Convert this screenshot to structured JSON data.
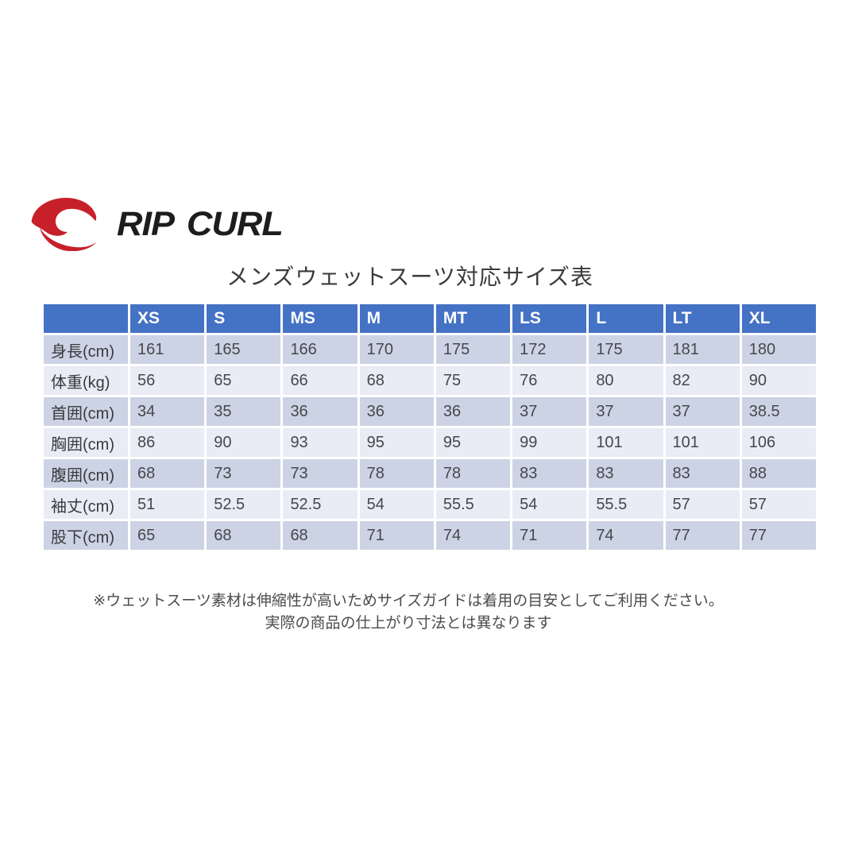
{
  "page": {
    "background": "#ffffff"
  },
  "logo": {
    "brand": "RIP CURL",
    "swoosh_color": "#c7202a",
    "text_color": "#1d1d1f"
  },
  "table_style": {
    "header_bg": "#4472c4",
    "header_text": "#ffffff",
    "row_dark_bg": "#ccd3e4",
    "row_light_bg": "#e9ebf5",
    "cell_text": "#46484d"
  },
  "chart_data": {
    "type": "table",
    "title": "メンズウェットスーツ対応サイズ表",
    "columns": [
      "",
      "XS",
      "S",
      "MS",
      "M",
      "MT",
      "LS",
      "L",
      "LT",
      "XL"
    ],
    "rows": [
      {
        "label": "身長(cm)",
        "values": [
          "161",
          "165",
          "166",
          "170",
          "175",
          "172",
          "175",
          "181",
          "180"
        ]
      },
      {
        "label": "体重(kg)",
        "values": [
          "56",
          "65",
          "66",
          "68",
          "75",
          "76",
          "80",
          "82",
          "90"
        ]
      },
      {
        "label": "首囲(cm)",
        "values": [
          "34",
          "35",
          "36",
          "36",
          "36",
          "37",
          "37",
          "37",
          "38.5"
        ]
      },
      {
        "label": "胸囲(cm)",
        "values": [
          "86",
          "90",
          "93",
          "95",
          "95",
          "99",
          "101",
          "101",
          "106"
        ]
      },
      {
        "label": "腹囲(cm)",
        "values": [
          "68",
          "73",
          "73",
          "78",
          "78",
          "83",
          "83",
          "83",
          "88"
        ]
      },
      {
        "label": "袖丈(cm)",
        "values": [
          "51",
          "52.5",
          "52.5",
          "54",
          "55.5",
          "54",
          "55.5",
          "57",
          "57"
        ]
      },
      {
        "label": "股下(cm)",
        "values": [
          "65",
          "68",
          "68",
          "71",
          "74",
          "71",
          "74",
          "77",
          "77"
        ]
      }
    ],
    "notes": [
      "※ウェットスーツ素材は伸縮性が高いためサイズガイドは着用の目安としてご利用ください。",
      "実際の商品の仕上がり寸法とは異なります"
    ],
    "layout_hints": {
      "banded_rows": true,
      "first_data_row_band": "dark",
      "grid": "white-gaps"
    }
  }
}
